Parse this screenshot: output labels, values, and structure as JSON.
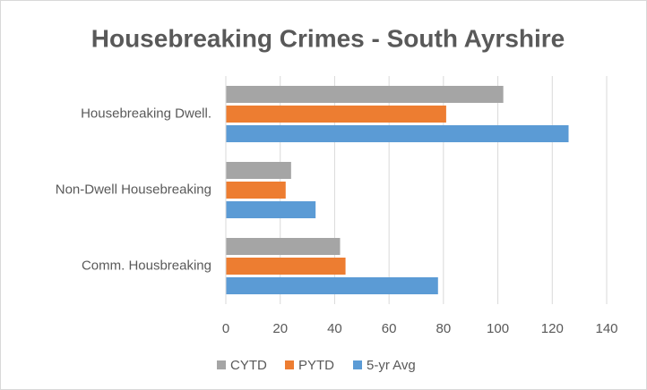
{
  "chart_data": {
    "type": "hbar",
    "title": "Housebreaking Crimes - South Ayrshire",
    "categories": [
      "Housebreaking Dwell.",
      "Non-Dwell Housebreaking",
      "Comm. Housbreaking"
    ],
    "series": [
      {
        "name": "CYTD",
        "color": "#a5a5a5",
        "values": [
          102,
          24,
          42
        ]
      },
      {
        "name": "PYTD",
        "color": "#ed7d31",
        "values": [
          81,
          22,
          44
        ]
      },
      {
        "name": "5-yr Avg",
        "color": "#5b9bd5",
        "values": [
          126,
          33,
          78
        ]
      }
    ],
    "xlim": [
      0,
      140
    ],
    "xticks": [
      0,
      20,
      40,
      60,
      80,
      100,
      120,
      140
    ],
    "grid": true,
    "legend": "bottom"
  }
}
